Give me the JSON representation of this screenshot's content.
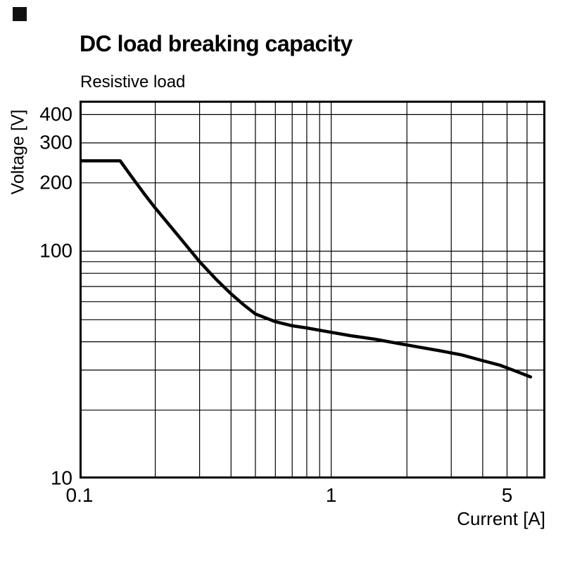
{
  "header": {
    "title": "DC load breaking capacity",
    "subtitle": "Resistive load"
  },
  "colors": {
    "background": "#ffffff",
    "line": "#000000",
    "grid": "#000000",
    "text": "#000000"
  },
  "chart_data": {
    "type": "line",
    "title": "DC load breaking capacity",
    "subtitle": "Resistive load",
    "xlabel": "Current [A]",
    "ylabel": "Voltage [V]",
    "x_scale": "log",
    "y_scale": "log",
    "xlim": [
      0.1,
      7.1
    ],
    "ylim": [
      10,
      460
    ],
    "grid": true,
    "legend": false,
    "x_ticks": [
      {
        "value": 0.1,
        "label": "0.1"
      },
      {
        "value": 1,
        "label": "1"
      },
      {
        "value": 5,
        "label": "5"
      }
    ],
    "y_ticks": [
      {
        "value": 400,
        "label": "400"
      },
      {
        "value": 300,
        "label": "300"
      },
      {
        "value": 200,
        "label": "200"
      },
      {
        "value": 100,
        "label": "100"
      },
      {
        "value": 10,
        "label": "10"
      }
    ],
    "x_gridlines": [
      0.2,
      0.3,
      0.4,
      0.5,
      0.6,
      0.7,
      0.8,
      0.9,
      1,
      2,
      3,
      4,
      5,
      6,
      7
    ],
    "y_gridlines": [
      20,
      30,
      40,
      50,
      60,
      70,
      80,
      90,
      100,
      200,
      300,
      400
    ],
    "series": [
      {
        "name": "DC breaking capacity (resistive load)",
        "points": [
          [
            0.1,
            250
          ],
          [
            0.145,
            250
          ],
          [
            0.16,
            215
          ],
          [
            0.18,
            180
          ],
          [
            0.2,
            155
          ],
          [
            0.25,
            115
          ],
          [
            0.3,
            90
          ],
          [
            0.35,
            75
          ],
          [
            0.4,
            65
          ],
          [
            0.45,
            58
          ],
          [
            0.5,
            53
          ],
          [
            0.6,
            49
          ],
          [
            0.7,
            47
          ],
          [
            0.8,
            46
          ],
          [
            1.0,
            44
          ],
          [
            1.2,
            42.5
          ],
          [
            1.5,
            41
          ],
          [
            1.8,
            39.5
          ],
          [
            2.2,
            38
          ],
          [
            2.7,
            36.5
          ],
          [
            3.3,
            35
          ],
          [
            4.0,
            33
          ],
          [
            4.7,
            31.5
          ],
          [
            5.5,
            29.5
          ],
          [
            6.2,
            28
          ]
        ]
      }
    ]
  }
}
